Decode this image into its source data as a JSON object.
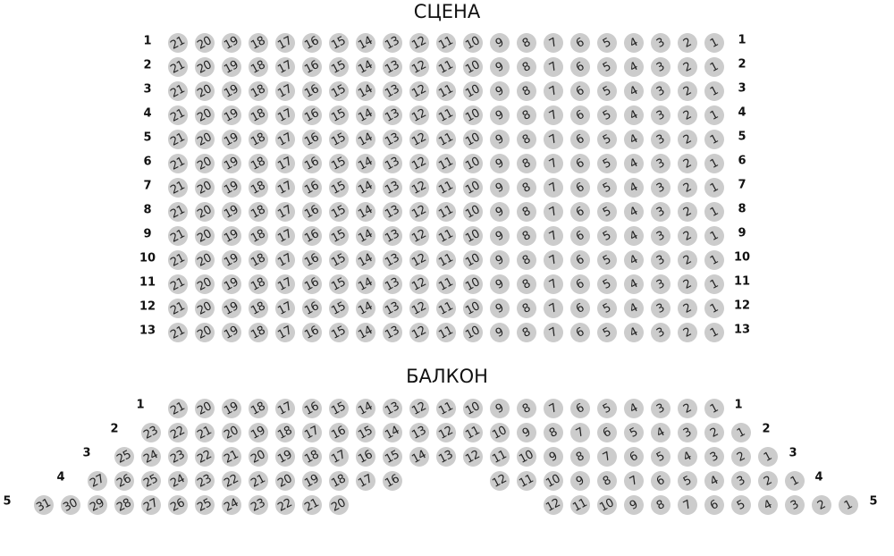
{
  "stage_title": "СЦЕНА",
  "balcony_title": "БАЛКОН",
  "colors": {
    "seat": "#cccccc",
    "seat_text": "#222222"
  },
  "parterre": {
    "rows": [
      {
        "label": "1",
        "groups": [
          {
            "from": 21,
            "to": 1
          }
        ]
      },
      {
        "label": "2",
        "groups": [
          {
            "from": 21,
            "to": 1
          }
        ]
      },
      {
        "label": "3",
        "groups": [
          {
            "from": 21,
            "to": 1
          }
        ]
      },
      {
        "label": "4",
        "groups": [
          {
            "from": 21,
            "to": 1
          }
        ]
      },
      {
        "label": "5",
        "groups": [
          {
            "from": 21,
            "to": 1
          }
        ]
      },
      {
        "label": "6",
        "groups": [
          {
            "from": 21,
            "to": 1
          }
        ]
      },
      {
        "label": "7",
        "groups": [
          {
            "from": 21,
            "to": 1
          }
        ]
      },
      {
        "label": "8",
        "groups": [
          {
            "from": 21,
            "to": 1
          }
        ]
      },
      {
        "label": "9",
        "groups": [
          {
            "from": 21,
            "to": 1
          }
        ]
      },
      {
        "label": "10",
        "groups": [
          {
            "from": 21,
            "to": 1
          }
        ]
      },
      {
        "label": "11",
        "groups": [
          {
            "from": 21,
            "to": 1
          }
        ]
      },
      {
        "label": "12",
        "groups": [
          {
            "from": 21,
            "to": 1
          }
        ]
      },
      {
        "label": "13",
        "groups": [
          {
            "from": 21,
            "to": 1
          }
        ]
      }
    ]
  },
  "balcony": {
    "rows": [
      {
        "label": "1",
        "groups": [
          {
            "from": 21,
            "to": 1
          }
        ]
      },
      {
        "label": "2",
        "groups": [
          {
            "from": 23,
            "to": 1
          }
        ]
      },
      {
        "label": "3",
        "groups": [
          {
            "from": 25,
            "to": 1
          }
        ]
      },
      {
        "label": "4",
        "groups": [
          {
            "from": 27,
            "to": 16
          },
          {
            "from": 12,
            "to": 1
          }
        ]
      },
      {
        "label": "5",
        "groups": [
          {
            "from": 31,
            "to": 20
          },
          {
            "from": 12,
            "to": 1
          }
        ]
      }
    ]
  }
}
